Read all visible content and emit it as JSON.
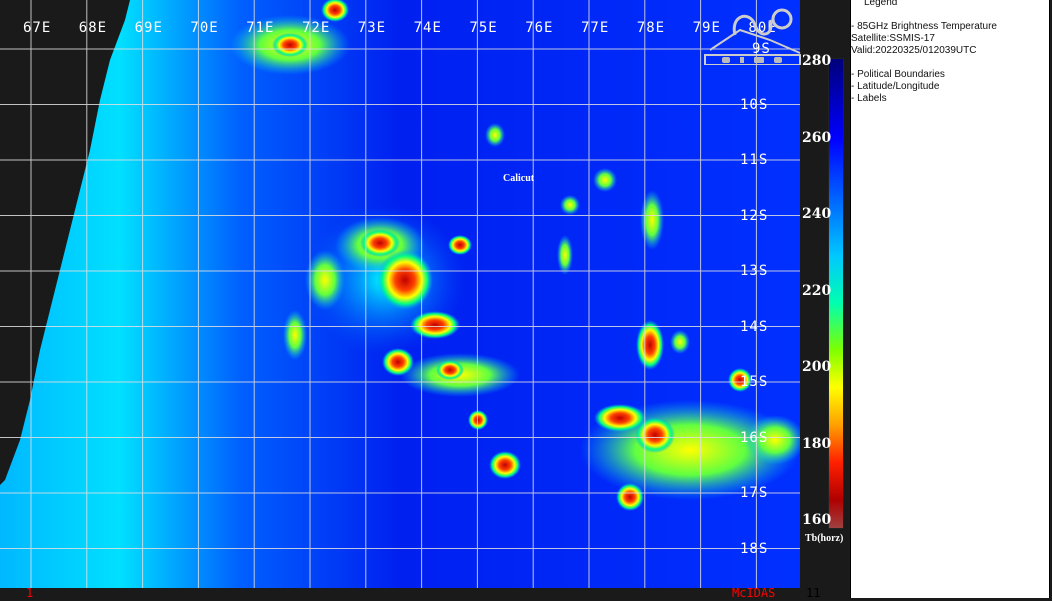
{
  "map": {
    "longitude_labels": [
      "67E",
      "68E",
      "69E",
      "70E",
      "71E",
      "72E",
      "73E",
      "74E",
      "75E",
      "76E",
      "77E",
      "78E",
      "79E",
      "80E"
    ],
    "latitude_labels": [
      "9S",
      "10S",
      "11S",
      "12S",
      "13S",
      "14S",
      "15S",
      "16S",
      "17S",
      "18S"
    ],
    "city_label": "Calicut",
    "logo_text": "GIMS"
  },
  "colorbar": {
    "ticks": [
      "280",
      "260",
      "240",
      "220",
      "200",
      "180",
      "160"
    ],
    "unit": "Tb(horz)",
    "range": [
      160,
      280
    ]
  },
  "legend": {
    "title": "Legend",
    "product": "-  85GHz Brightness Temperature",
    "satellite": "Satellite:SSMIS-17",
    "valid": "Valid:20220325/012039UTC",
    "layers": [
      "-  Political Boundaries",
      "-  Latitude/Longitude",
      "-  Labels"
    ]
  },
  "bottom_bar": {
    "left_number": "1",
    "software": "McIDAS",
    "right_number": "11"
  },
  "colors": {
    "background": "#1a1a1a",
    "grid": "#e0e0e0",
    "accent_text": "#ff0000"
  }
}
